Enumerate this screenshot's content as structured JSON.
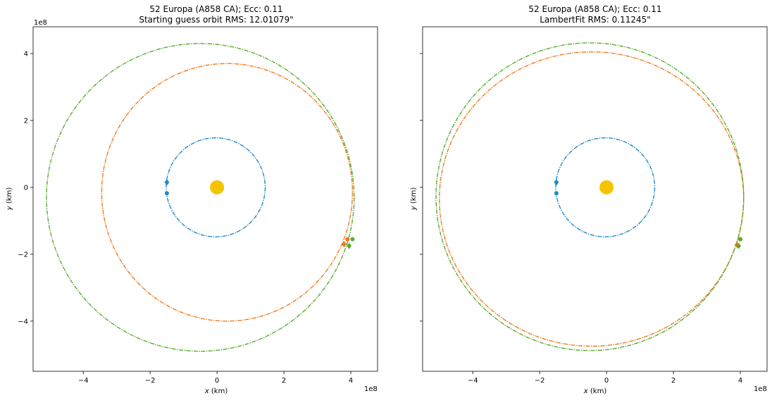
{
  "chart_data": [
    {
      "type": "line",
      "title_line1": "52 Europa (A858 CA); Ecc: 0.11",
      "title_line2": "Starting guess orbit RMS: 12.01079\"",
      "xlabel": "x (km)",
      "ylabel": "y (km)",
      "x_scale_label": "1e8",
      "y_scale_label": "1e8",
      "xlim": [
        -5.5,
        4.8
      ],
      "ylim": [
        -5.5,
        4.8
      ],
      "x_ticks": [
        -4,
        -2,
        0,
        2,
        4
      ],
      "y_ticks": [
        -4,
        -2,
        0,
        2,
        4
      ],
      "x_tick_labels": [
        "−4",
        "−2",
        "0",
        "2",
        "4"
      ],
      "y_tick_labels": [
        "−4",
        "−2",
        "0",
        "2",
        "4"
      ],
      "show_y_tick_labels": true,
      "sun": {
        "x": 0,
        "y": 0,
        "color": "#f5c400"
      },
      "series": [
        {
          "color": "#1f8ac8",
          "ellipse": {
            "cx": -0.04,
            "cy": 0.0,
            "rx": 1.48,
            "ry": 1.48
          },
          "start": {
            "x": -1.5,
            "y": 0.15
          },
          "end": {
            "x": -1.5,
            "y": -0.18
          }
        },
        {
          "color": "#f07a1a",
          "ellipse": {
            "cx": 0.3,
            "cy": -0.15,
            "rx": 3.75,
            "ry": 3.85
          },
          "start": {
            "x": 3.8,
            "y": -1.7
          },
          "end": {
            "x": 3.9,
            "y": -1.55
          }
        },
        {
          "color": "#5aab2e",
          "ellipse": {
            "cx": -0.5,
            "cy": -0.3,
            "rx": 4.6,
            "ry": 4.6
          },
          "start": {
            "x": 3.95,
            "y": -1.75
          },
          "end": {
            "x": 4.05,
            "y": -1.55
          }
        }
      ]
    },
    {
      "type": "line",
      "title_line1": "52 Europa (A858 CA); Ecc: 0.11",
      "title_line2": "LambertFit RMS: 0.11245\"",
      "xlabel": "x (km)",
      "ylabel": "y (km)",
      "x_scale_label": "1e8",
      "y_scale_label": "",
      "xlim": [
        -5.5,
        4.8
      ],
      "ylim": [
        -5.5,
        4.8
      ],
      "x_ticks": [
        -4,
        -2,
        0,
        2,
        4
      ],
      "y_ticks": [
        -4,
        -2,
        0,
        2,
        4
      ],
      "x_tick_labels": [
        "−4",
        "−2",
        "0",
        "2",
        "4"
      ],
      "y_tick_labels": [
        "",
        "",
        "",
        "",
        ""
      ],
      "show_y_tick_labels": false,
      "sun": {
        "x": 0,
        "y": 0,
        "color": "#f5c400"
      },
      "series": [
        {
          "color": "#1f8ac8",
          "ellipse": {
            "cx": -0.04,
            "cy": 0.0,
            "rx": 1.48,
            "ry": 1.48
          },
          "start": {
            "x": -1.5,
            "y": 0.15
          },
          "end": {
            "x": -1.5,
            "y": -0.18
          }
        },
        {
          "color": "#f07a1a",
          "ellipse": {
            "cx": -0.45,
            "cy": -0.35,
            "rx": 4.55,
            "ry": 4.4
          },
          "start": {
            "x": 3.9,
            "y": -1.72
          },
          "end": {
            "x": 4.0,
            "y": -1.55
          }
        },
        {
          "color": "#5aab2e",
          "ellipse": {
            "cx": -0.5,
            "cy": -0.28,
            "rx": 4.6,
            "ry": 4.6
          },
          "start": {
            "x": 3.95,
            "y": -1.75
          },
          "end": {
            "x": 4.0,
            "y": -1.55
          }
        }
      ]
    }
  ]
}
